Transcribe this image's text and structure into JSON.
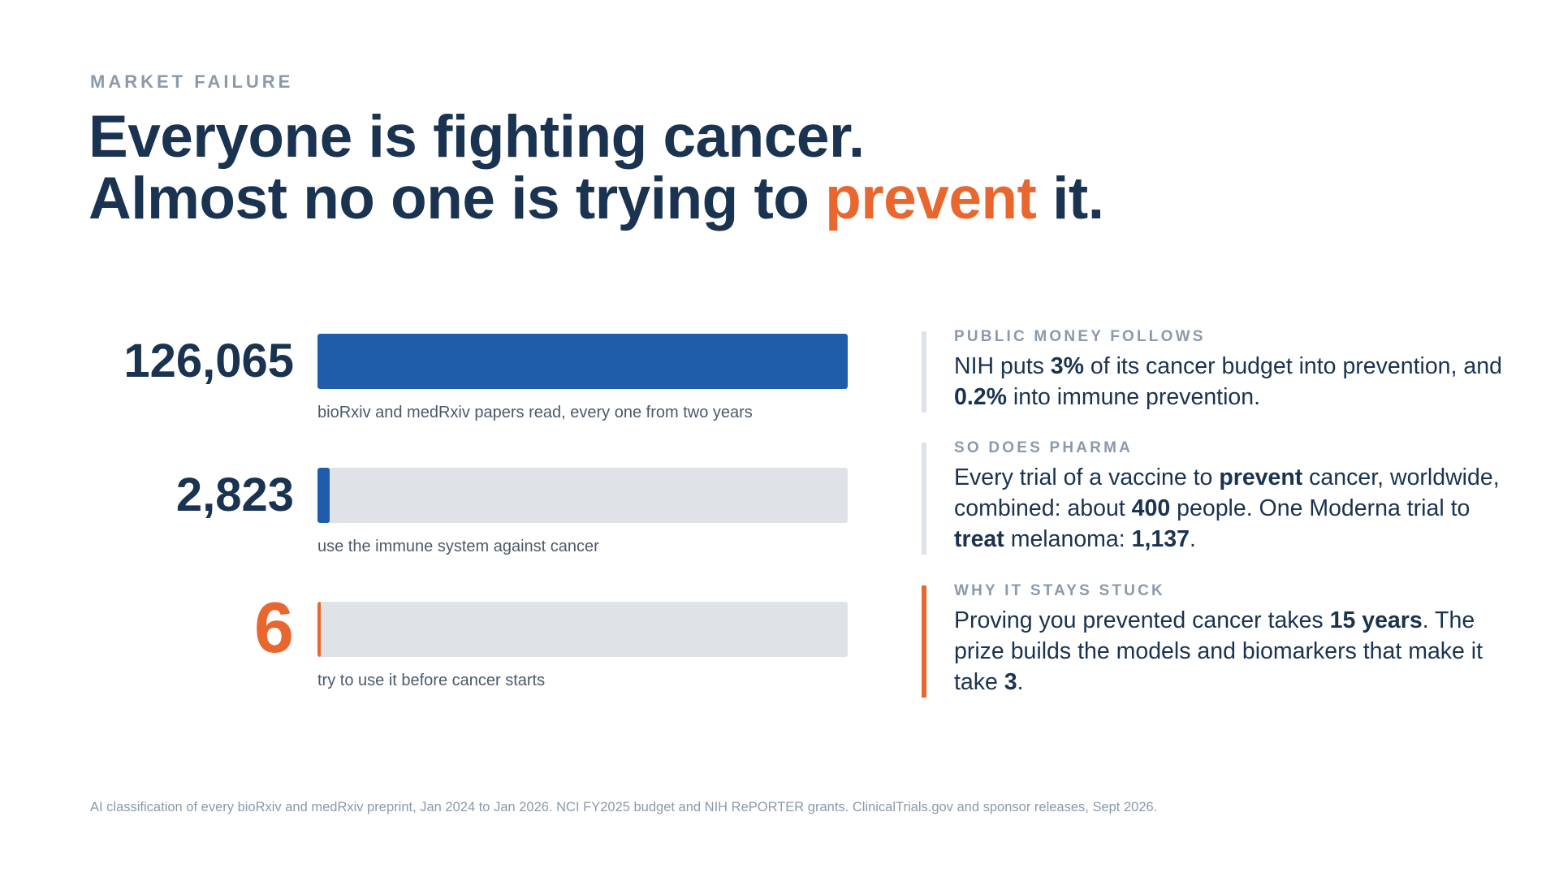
{
  "eyebrow": "MARKET FAILURE",
  "headline": {
    "line1": "Everyone is fighting cancer.",
    "line2_before": "Almost no one is trying to ",
    "line2_accent": "prevent",
    "line2_after": " it."
  },
  "colors": {
    "navy": "#1a3350",
    "bar_blue": "#1f5dab",
    "accent_orange": "#e8672f",
    "track_gray": "#dfe3e8",
    "muted_gray": "#8a9aab"
  },
  "chart_data": {
    "type": "bar",
    "orientation": "horizontal",
    "categories": [
      "bioRxiv and medRxiv papers read, every one from two years",
      "use the immune system against cancer",
      "try to use it before cancer starts"
    ],
    "values": [
      126065,
      2823,
      6
    ],
    "value_labels": [
      "126,065",
      "2,823",
      "6"
    ],
    "highlight_index": 2,
    "xlim": [
      0,
      126065
    ],
    "min_visible_fraction": [
      0,
      0.022,
      0.006
    ]
  },
  "panels": [
    {
      "title": "PUBLIC MONEY FOLLOWS",
      "segments": [
        {
          "t": "NIH puts "
        },
        {
          "t": "3%",
          "b": true
        },
        {
          "t": " of its cancer budget into prevention, and "
        },
        {
          "t": "0.2%",
          "b": true
        },
        {
          "t": " into immune prevention."
        }
      ],
      "accent": false
    },
    {
      "title": "SO DOES PHARMA",
      "segments": [
        {
          "t": "Every trial of a vaccine to "
        },
        {
          "t": "prevent",
          "b": true
        },
        {
          "t": " cancer, worldwide, combined: about "
        },
        {
          "t": "400",
          "b": true
        },
        {
          "t": " people. One Moderna trial to "
        },
        {
          "t": "treat",
          "b": true
        },
        {
          "t": " melanoma: "
        },
        {
          "t": "1,137",
          "b": true
        },
        {
          "t": "."
        }
      ],
      "accent": false
    },
    {
      "title": "WHY IT STAYS STUCK",
      "segments": [
        {
          "t": "Proving you prevented cancer takes "
        },
        {
          "t": "15 years",
          "b": true
        },
        {
          "t": ". The prize builds the models and biomarkers that make it take "
        },
        {
          "t": "3",
          "b": true
        },
        {
          "t": "."
        }
      ],
      "accent": true
    }
  ],
  "footnote": "AI classification of every bioRxiv and medRxiv preprint, Jan 2024 to Jan 2026. NCI FY2025 budget and NIH RePORTER grants. ClinicalTrials.gov and sponsor releases, Sept 2026."
}
